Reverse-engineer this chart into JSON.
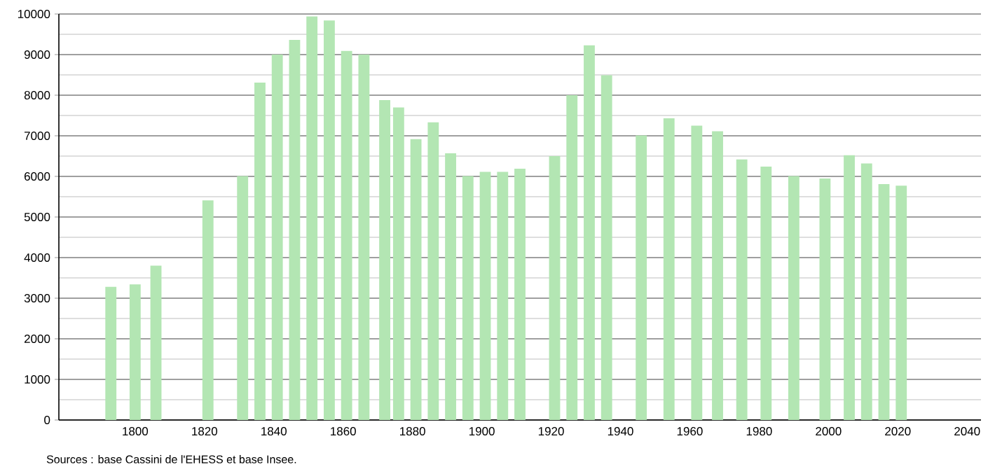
{
  "chart_data": {
    "type": "bar",
    "x": [
      1793,
      1800,
      1806,
      1821,
      1831,
      1836,
      1841,
      1846,
      1851,
      1856,
      1861,
      1866,
      1872,
      1876,
      1881,
      1886,
      1891,
      1896,
      1901,
      1906,
      1911,
      1921,
      1926,
      1931,
      1936,
      1946,
      1954,
      1962,
      1968,
      1975,
      1982,
      1990,
      1999,
      2006,
      2011,
      2016,
      2021
    ],
    "values": [
      3280,
      3340,
      3800,
      5410,
      6010,
      8310,
      9000,
      9360,
      9940,
      9840,
      9090,
      9000,
      7880,
      7700,
      6920,
      7330,
      6570,
      6010,
      6110,
      6110,
      6190,
      6500,
      8000,
      9230,
      8490,
      7010,
      7430,
      7250,
      7110,
      6420,
      6240,
      6010,
      5950,
      6520,
      6320,
      5810,
      5770
    ],
    "color": "#b3e6b3",
    "xlim": [
      1778,
      2044
    ],
    "ylim": [
      0,
      10000
    ],
    "xticks": [
      1800,
      1820,
      1840,
      1860,
      1880,
      1900,
      1920,
      1940,
      1960,
      1980,
      2000,
      2020,
      2040
    ],
    "yticks": [
      0,
      1000,
      2000,
      3000,
      4000,
      5000,
      6000,
      7000,
      8000,
      9000,
      10000
    ],
    "grid": "y",
    "annotations": [
      "Sources : base Cassini de l'EHESS et base Insee."
    ]
  }
}
